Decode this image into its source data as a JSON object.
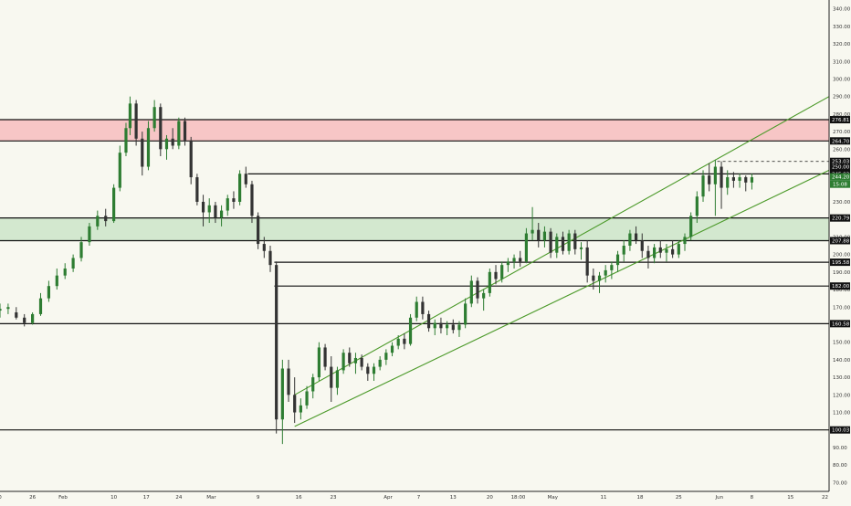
{
  "chart_data": {
    "type": "candlestick",
    "background": "#f8f8f0",
    "colors": {
      "up": "#2e7d32",
      "down": "#333333",
      "level_line": "#111111",
      "channel": "#4c9a2a",
      "resistance_zone": "#f7c6c6",
      "support_zone": "#d3e8cf",
      "axis_text": "#333333",
      "label_fill": "#111111",
      "label_text": "#ffffff",
      "last_price_fill": "#2e7d32"
    },
    "y_axis": {
      "min": 65,
      "max": 345,
      "ticks": [
        "70.00",
        "80.00",
        "90.00",
        "100.00",
        "110.00",
        "120.00",
        "130.00",
        "140.00",
        "150.00",
        "160.00",
        "170.00",
        "180.00",
        "190.00",
        "200.00",
        "210.00",
        "220.00",
        "230.00",
        "240.00",
        "250.00",
        "260.00",
        "270.00",
        "280.00",
        "290.00",
        "300.00",
        "310.00",
        "320.00",
        "330.00",
        "340.00"
      ]
    },
    "x_axis": {
      "labels": [
        {
          "text": "0",
          "day": 0
        },
        {
          "text": "26",
          "day": 16
        },
        {
          "text": "Feb",
          "day": 31
        },
        {
          "text": "10",
          "day": 56
        },
        {
          "text": "17",
          "day": 72
        },
        {
          "text": "24",
          "day": 88
        },
        {
          "text": "Mar",
          "day": 104
        },
        {
          "text": "9",
          "day": 127
        },
        {
          "text": "16",
          "day": 147
        },
        {
          "text": "23",
          "day": 164
        },
        {
          "text": "Apr",
          "day": 191
        },
        {
          "text": "7",
          "day": 206
        },
        {
          "text": "13",
          "day": 223
        },
        {
          "text": "20",
          "day": 241
        },
        {
          "text": "18:00",
          "day": 255
        },
        {
          "text": "May",
          "day": 272
        },
        {
          "text": "11",
          "day": 297
        },
        {
          "text": "18",
          "day": 315
        },
        {
          "text": "25",
          "day": 334
        },
        {
          "text": "Jun",
          "day": 354
        },
        {
          "text": "8",
          "day": 370
        },
        {
          "text": "15",
          "day": 389
        },
        {
          "text": "22",
          "day": 406
        }
      ],
      "last_day": 408
    },
    "zones": [
      {
        "name": "resistance",
        "from": 264.7,
        "to": 276.81
      },
      {
        "name": "support",
        "from": 207.88,
        "to": 220.79
      }
    ],
    "levels": [
      {
        "value": 276.81,
        "label": "276.81",
        "start_day": 0
      },
      {
        "value": 264.7,
        "label": "264.70",
        "start_day": 0
      },
      {
        "value": 253.03,
        "label": "253.03",
        "start_day": 353,
        "dashed": true
      },
      {
        "value": 245.92,
        "label": "245.92",
        "start_day": 122
      },
      {
        "value": 220.79,
        "label": "220.79",
        "start_day": 0
      },
      {
        "value": 207.88,
        "label": "207.88",
        "start_day": 0
      },
      {
        "value": 195.58,
        "label": "195.58",
        "start_day": 135
      },
      {
        "value": 182.0,
        "label": "182.00",
        "start_day": 135
      },
      {
        "value": 160.58,
        "label": "160.58",
        "start_day": 0
      },
      {
        "value": 100.03,
        "label": "100.03",
        "start_day": 0
      }
    ],
    "last_price": {
      "value": 244.2,
      "label": "244.20",
      "sublabel": "15:08"
    },
    "extra_axis_label": {
      "value": 250.0,
      "label": "250.00"
    },
    "channel": [
      {
        "from": {
          "day": 145,
          "price": 120
        },
        "to": {
          "day": 408,
          "price": 290
        }
      },
      {
        "from": {
          "day": 145,
          "price": 102
        },
        "to": {
          "day": 408,
          "price": 248
        }
      }
    ],
    "candles": [
      {
        "x": 0,
        "o": 168,
        "h": 172,
        "l": 164,
        "c": 169
      },
      {
        "x": 4,
        "o": 169,
        "h": 172,
        "l": 166,
        "c": 170
      },
      {
        "x": 8,
        "o": 167,
        "h": 170,
        "l": 163,
        "c": 164
      },
      {
        "x": 12,
        "o": 164,
        "h": 166,
        "l": 159,
        "c": 161
      },
      {
        "x": 16,
        "o": 161,
        "h": 167,
        "l": 160,
        "c": 166
      },
      {
        "x": 20,
        "o": 166,
        "h": 178,
        "l": 165,
        "c": 175
      },
      {
        "x": 24,
        "o": 175,
        "h": 185,
        "l": 173,
        "c": 182
      },
      {
        "x": 28,
        "o": 182,
        "h": 192,
        "l": 180,
        "c": 188
      },
      {
        "x": 32,
        "o": 188,
        "h": 195,
        "l": 186,
        "c": 192
      },
      {
        "x": 36,
        "o": 192,
        "h": 200,
        "l": 190,
        "c": 198
      },
      {
        "x": 40,
        "o": 198,
        "h": 210,
        "l": 196,
        "c": 207
      },
      {
        "x": 44,
        "o": 207,
        "h": 218,
        "l": 205,
        "c": 216
      },
      {
        "x": 48,
        "o": 216,
        "h": 225,
        "l": 214,
        "c": 222
      },
      {
        "x": 52,
        "o": 222,
        "h": 226,
        "l": 216,
        "c": 219
      },
      {
        "x": 56,
        "o": 219,
        "h": 240,
        "l": 218,
        "c": 238
      },
      {
        "x": 59,
        "o": 238,
        "h": 262,
        "l": 236,
        "c": 258
      },
      {
        "x": 62,
        "o": 258,
        "h": 275,
        "l": 256,
        "c": 272
      },
      {
        "x": 64,
        "o": 272,
        "h": 290,
        "l": 268,
        "c": 286
      },
      {
        "x": 67,
        "o": 286,
        "h": 288,
        "l": 262,
        "c": 266
      },
      {
        "x": 70,
        "o": 266,
        "h": 270,
        "l": 245,
        "c": 250
      },
      {
        "x": 73,
        "o": 250,
        "h": 276,
        "l": 248,
        "c": 272
      },
      {
        "x": 76,
        "o": 272,
        "h": 288,
        "l": 270,
        "c": 284
      },
      {
        "x": 79,
        "o": 284,
        "h": 286,
        "l": 256,
        "c": 260
      },
      {
        "x": 82,
        "o": 260,
        "h": 268,
        "l": 254,
        "c": 266
      },
      {
        "x": 85,
        "o": 266,
        "h": 272,
        "l": 260,
        "c": 262
      },
      {
        "x": 88,
        "o": 262,
        "h": 278,
        "l": 260,
        "c": 276
      },
      {
        "x": 91,
        "o": 276,
        "h": 278,
        "l": 262,
        "c": 265
      },
      {
        "x": 94,
        "o": 265,
        "h": 267,
        "l": 240,
        "c": 244
      },
      {
        "x": 97,
        "o": 244,
        "h": 246,
        "l": 228,
        "c": 230
      },
      {
        "x": 100,
        "o": 230,
        "h": 234,
        "l": 216,
        "c": 224
      },
      {
        "x": 103,
        "o": 224,
        "h": 232,
        "l": 218,
        "c": 228
      },
      {
        "x": 106,
        "o": 228,
        "h": 230,
        "l": 218,
        "c": 221
      },
      {
        "x": 109,
        "o": 221,
        "h": 228,
        "l": 216,
        "c": 225
      },
      {
        "x": 112,
        "o": 225,
        "h": 234,
        "l": 222,
        "c": 232
      },
      {
        "x": 115,
        "o": 232,
        "h": 236,
        "l": 226,
        "c": 230
      },
      {
        "x": 118,
        "o": 230,
        "h": 248,
        "l": 228,
        "c": 246
      },
      {
        "x": 121,
        "o": 246,
        "h": 250,
        "l": 238,
        "c": 240
      },
      {
        "x": 124,
        "o": 240,
        "h": 242,
        "l": 218,
        "c": 222
      },
      {
        "x": 127,
        "o": 222,
        "h": 224,
        "l": 203,
        "c": 206
      },
      {
        "x": 130,
        "o": 206,
        "h": 210,
        "l": 198,
        "c": 202
      },
      {
        "x": 133,
        "o": 202,
        "h": 205,
        "l": 190,
        "c": 194
      },
      {
        "x": 136,
        "o": 194,
        "h": 196,
        "l": 98,
        "c": 106
      },
      {
        "x": 139,
        "o": 106,
        "h": 140,
        "l": 92,
        "c": 135
      },
      {
        "x": 142,
        "o": 135,
        "h": 140,
        "l": 116,
        "c": 120
      },
      {
        "x": 145,
        "o": 120,
        "h": 130,
        "l": 104,
        "c": 110
      },
      {
        "x": 148,
        "o": 110,
        "h": 118,
        "l": 106,
        "c": 114
      },
      {
        "x": 151,
        "o": 114,
        "h": 125,
        "l": 112,
        "c": 122
      },
      {
        "x": 154,
        "o": 122,
        "h": 132,
        "l": 118,
        "c": 130
      },
      {
        "x": 157,
        "o": 130,
        "h": 150,
        "l": 128,
        "c": 147
      },
      {
        "x": 160,
        "o": 147,
        "h": 149,
        "l": 134,
        "c": 136
      },
      {
        "x": 163,
        "o": 136,
        "h": 142,
        "l": 116,
        "c": 124
      },
      {
        "x": 166,
        "o": 124,
        "h": 136,
        "l": 120,
        "c": 134
      },
      {
        "x": 169,
        "o": 134,
        "h": 146,
        "l": 132,
        "c": 144
      },
      {
        "x": 172,
        "o": 144,
        "h": 147,
        "l": 136,
        "c": 138
      },
      {
        "x": 175,
        "o": 138,
        "h": 144,
        "l": 132,
        "c": 141
      },
      {
        "x": 178,
        "o": 141,
        "h": 143,
        "l": 134,
        "c": 136
      },
      {
        "x": 181,
        "o": 136,
        "h": 138,
        "l": 128,
        "c": 132
      },
      {
        "x": 184,
        "o": 132,
        "h": 138,
        "l": 128,
        "c": 136
      },
      {
        "x": 187,
        "o": 136,
        "h": 142,
        "l": 134,
        "c": 140
      },
      {
        "x": 190,
        "o": 140,
        "h": 146,
        "l": 137,
        "c": 144
      },
      {
        "x": 193,
        "o": 144,
        "h": 150,
        "l": 142,
        "c": 148
      },
      {
        "x": 196,
        "o": 148,
        "h": 154,
        "l": 146,
        "c": 152
      },
      {
        "x": 199,
        "o": 152,
        "h": 155,
        "l": 146,
        "c": 149
      },
      {
        "x": 202,
        "o": 149,
        "h": 166,
        "l": 148,
        "c": 164
      },
      {
        "x": 205,
        "o": 164,
        "h": 176,
        "l": 162,
        "c": 173
      },
      {
        "x": 208,
        "o": 173,
        "h": 176,
        "l": 163,
        "c": 166
      },
      {
        "x": 211,
        "o": 166,
        "h": 168,
        "l": 156,
        "c": 158
      },
      {
        "x": 214,
        "o": 158,
        "h": 163,
        "l": 154,
        "c": 161
      },
      {
        "x": 217,
        "o": 161,
        "h": 164,
        "l": 155,
        "c": 158
      },
      {
        "x": 220,
        "o": 158,
        "h": 162,
        "l": 154,
        "c": 160
      },
      {
        "x": 223,
        "o": 160,
        "h": 163,
        "l": 155,
        "c": 157
      },
      {
        "x": 226,
        "o": 157,
        "h": 162,
        "l": 153,
        "c": 160
      },
      {
        "x": 229,
        "o": 160,
        "h": 175,
        "l": 158,
        "c": 172
      },
      {
        "x": 232,
        "o": 172,
        "h": 188,
        "l": 170,
        "c": 185
      },
      {
        "x": 235,
        "o": 185,
        "h": 187,
        "l": 172,
        "c": 175
      },
      {
        "x": 238,
        "o": 175,
        "h": 180,
        "l": 168,
        "c": 178
      },
      {
        "x": 241,
        "o": 178,
        "h": 192,
        "l": 176,
        "c": 190
      },
      {
        "x": 244,
        "o": 190,
        "h": 194,
        "l": 183,
        "c": 186
      },
      {
        "x": 247,
        "o": 186,
        "h": 196,
        "l": 184,
        "c": 194
      },
      {
        "x": 250,
        "o": 194,
        "h": 198,
        "l": 190,
        "c": 196
      },
      {
        "x": 253,
        "o": 196,
        "h": 200,
        "l": 192,
        "c": 198
      },
      {
        "x": 256,
        "o": 198,
        "h": 202,
        "l": 193,
        "c": 196
      },
      {
        "x": 259,
        "o": 196,
        "h": 215,
        "l": 195,
        "c": 212
      },
      {
        "x": 262,
        "o": 212,
        "h": 227,
        "l": 208,
        "c": 214
      },
      {
        "x": 265,
        "o": 214,
        "h": 218,
        "l": 204,
        "c": 208
      },
      {
        "x": 268,
        "o": 208,
        "h": 216,
        "l": 204,
        "c": 213
      },
      {
        "x": 271,
        "o": 213,
        "h": 215,
        "l": 198,
        "c": 201
      },
      {
        "x": 274,
        "o": 201,
        "h": 212,
        "l": 198,
        "c": 210
      },
      {
        "x": 277,
        "o": 210,
        "h": 213,
        "l": 200,
        "c": 202
      },
      {
        "x": 280,
        "o": 202,
        "h": 214,
        "l": 200,
        "c": 212
      },
      {
        "x": 283,
        "o": 212,
        "h": 214,
        "l": 200,
        "c": 203
      },
      {
        "x": 286,
        "o": 203,
        "h": 207,
        "l": 197,
        "c": 204
      },
      {
        "x": 289,
        "o": 204,
        "h": 208,
        "l": 184,
        "c": 188
      },
      {
        "x": 292,
        "o": 188,
        "h": 192,
        "l": 180,
        "c": 185
      },
      {
        "x": 295,
        "o": 185,
        "h": 190,
        "l": 178,
        "c": 188
      },
      {
        "x": 298,
        "o": 188,
        "h": 194,
        "l": 184,
        "c": 191
      },
      {
        "x": 301,
        "o": 191,
        "h": 196,
        "l": 186,
        "c": 194
      },
      {
        "x": 304,
        "o": 194,
        "h": 202,
        "l": 190,
        "c": 200
      },
      {
        "x": 307,
        "o": 200,
        "h": 208,
        "l": 196,
        "c": 205
      },
      {
        "x": 310,
        "o": 205,
        "h": 214,
        "l": 202,
        "c": 212
      },
      {
        "x": 313,
        "o": 212,
        "h": 216,
        "l": 206,
        "c": 208
      },
      {
        "x": 316,
        "o": 208,
        "h": 212,
        "l": 198,
        "c": 202
      },
      {
        "x": 319,
        "o": 202,
        "h": 205,
        "l": 192,
        "c": 198
      },
      {
        "x": 322,
        "o": 198,
        "h": 206,
        "l": 195,
        "c": 204
      },
      {
        "x": 325,
        "o": 204,
        "h": 208,
        "l": 198,
        "c": 201
      },
      {
        "x": 328,
        "o": 201,
        "h": 206,
        "l": 196,
        "c": 203
      },
      {
        "x": 331,
        "o": 203,
        "h": 208,
        "l": 198,
        "c": 200
      },
      {
        "x": 334,
        "o": 200,
        "h": 208,
        "l": 198,
        "c": 206
      },
      {
        "x": 337,
        "o": 206,
        "h": 212,
        "l": 202,
        "c": 210
      },
      {
        "x": 340,
        "o": 210,
        "h": 224,
        "l": 208,
        "c": 222
      },
      {
        "x": 343,
        "o": 222,
        "h": 236,
        "l": 218,
        "c": 233
      },
      {
        "x": 346,
        "o": 233,
        "h": 248,
        "l": 230,
        "c": 245
      },
      {
        "x": 349,
        "o": 245,
        "h": 252,
        "l": 236,
        "c": 240
      },
      {
        "x": 352,
        "o": 240,
        "h": 254,
        "l": 222,
        "c": 250
      },
      {
        "x": 355,
        "o": 250,
        "h": 253,
        "l": 226,
        "c": 238
      },
      {
        "x": 358,
        "o": 238,
        "h": 248,
        "l": 234,
        "c": 244
      },
      {
        "x": 361,
        "o": 244,
        "h": 247,
        "l": 238,
        "c": 242
      },
      {
        "x": 364,
        "o": 242,
        "h": 246,
        "l": 238,
        "c": 244
      },
      {
        "x": 367,
        "o": 244,
        "h": 245,
        "l": 236,
        "c": 241
      },
      {
        "x": 370,
        "o": 241,
        "h": 246,
        "l": 237,
        "c": 244
      }
    ]
  }
}
